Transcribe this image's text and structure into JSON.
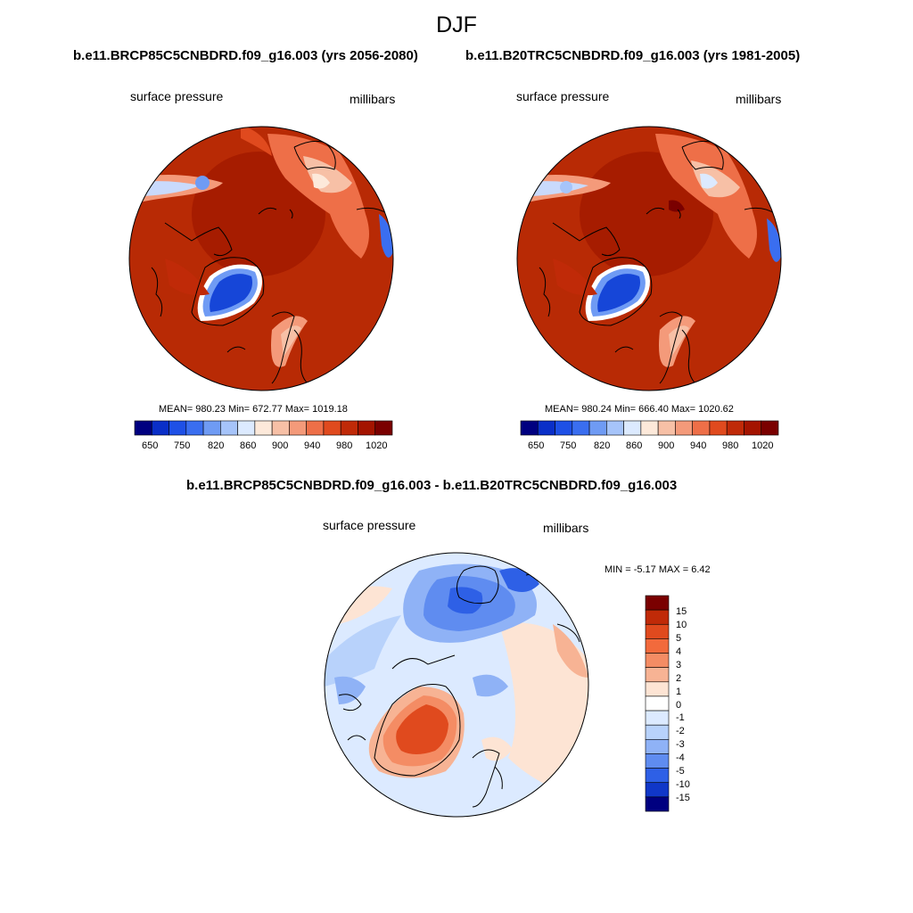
{
  "figure": {
    "title": "DJF"
  },
  "panels": [
    {
      "title": "b.e11.BRCP85C5CNBDRD.f09_g16.003 (yrs 2056-2080)",
      "variable": "surface pressure",
      "units": "millibars",
      "stats": "MEAN= 980.23  Min= 672.77  Max= 1019.18",
      "colorbar": {
        "ticks": [
          "650",
          "750",
          "820",
          "860",
          "900",
          "940",
          "980",
          "1020"
        ],
        "colors": [
          "#000080",
          "#0a2fc8",
          "#1e50e6",
          "#3a6ef0",
          "#6f9bf4",
          "#a6c4fa",
          "#dceaff",
          "#fde9da",
          "#f7c0a6",
          "#f49a7a",
          "#ee6f48",
          "#e04a1e",
          "#c02a08",
          "#a41400",
          "#7a0000"
        ]
      }
    },
    {
      "title": "b.e11.B20TRC5CNBDRD.f09_g16.003 (yrs 1981-2005)",
      "variable": "surface pressure",
      "units": "millibars",
      "stats": "MEAN= 980.24  Min= 666.40  Max= 1020.62",
      "colorbar": {
        "ticks": [
          "650",
          "750",
          "820",
          "860",
          "900",
          "940",
          "980",
          "1020"
        ],
        "colors": [
          "#000080",
          "#0a2fc8",
          "#1e50e6",
          "#3a6ef0",
          "#6f9bf4",
          "#a6c4fa",
          "#dceaff",
          "#fde9da",
          "#f7c0a6",
          "#f49a7a",
          "#ee6f48",
          "#e04a1e",
          "#c02a08",
          "#a41400",
          "#7a0000"
        ]
      }
    }
  ],
  "difference": {
    "title": "b.e11.BRCP85C5CNBDRD.f09_g16.003 - b.e11.B20TRC5CNBDRD.f09_g16.003",
    "variable": "surface pressure",
    "units": "millibars",
    "stats": "MIN =  -5.17 MAX =   6.42",
    "colorbar": {
      "ticks": [
        "15",
        "10",
        "5",
        "4",
        "3",
        "2",
        "1",
        "0",
        "-1",
        "-2",
        "-3",
        "-4",
        "-5",
        "-10",
        "-15"
      ],
      "colors": [
        "#7a0000",
        "#c02a08",
        "#e04a1e",
        "#f26a3c",
        "#f48c64",
        "#f7b394",
        "#fde4d4",
        "#ffffff",
        "#dceaff",
        "#b8d2fb",
        "#8fb2f6",
        "#5f8cf0",
        "#2e60e6",
        "#1037c8",
        "#000080"
      ]
    }
  },
  "colors": {
    "ocean_high": "#b82a05",
    "arctic_core": "#a61c00",
    "greenland_low": "#1646d8",
    "diff_bg": "#dceaff"
  }
}
